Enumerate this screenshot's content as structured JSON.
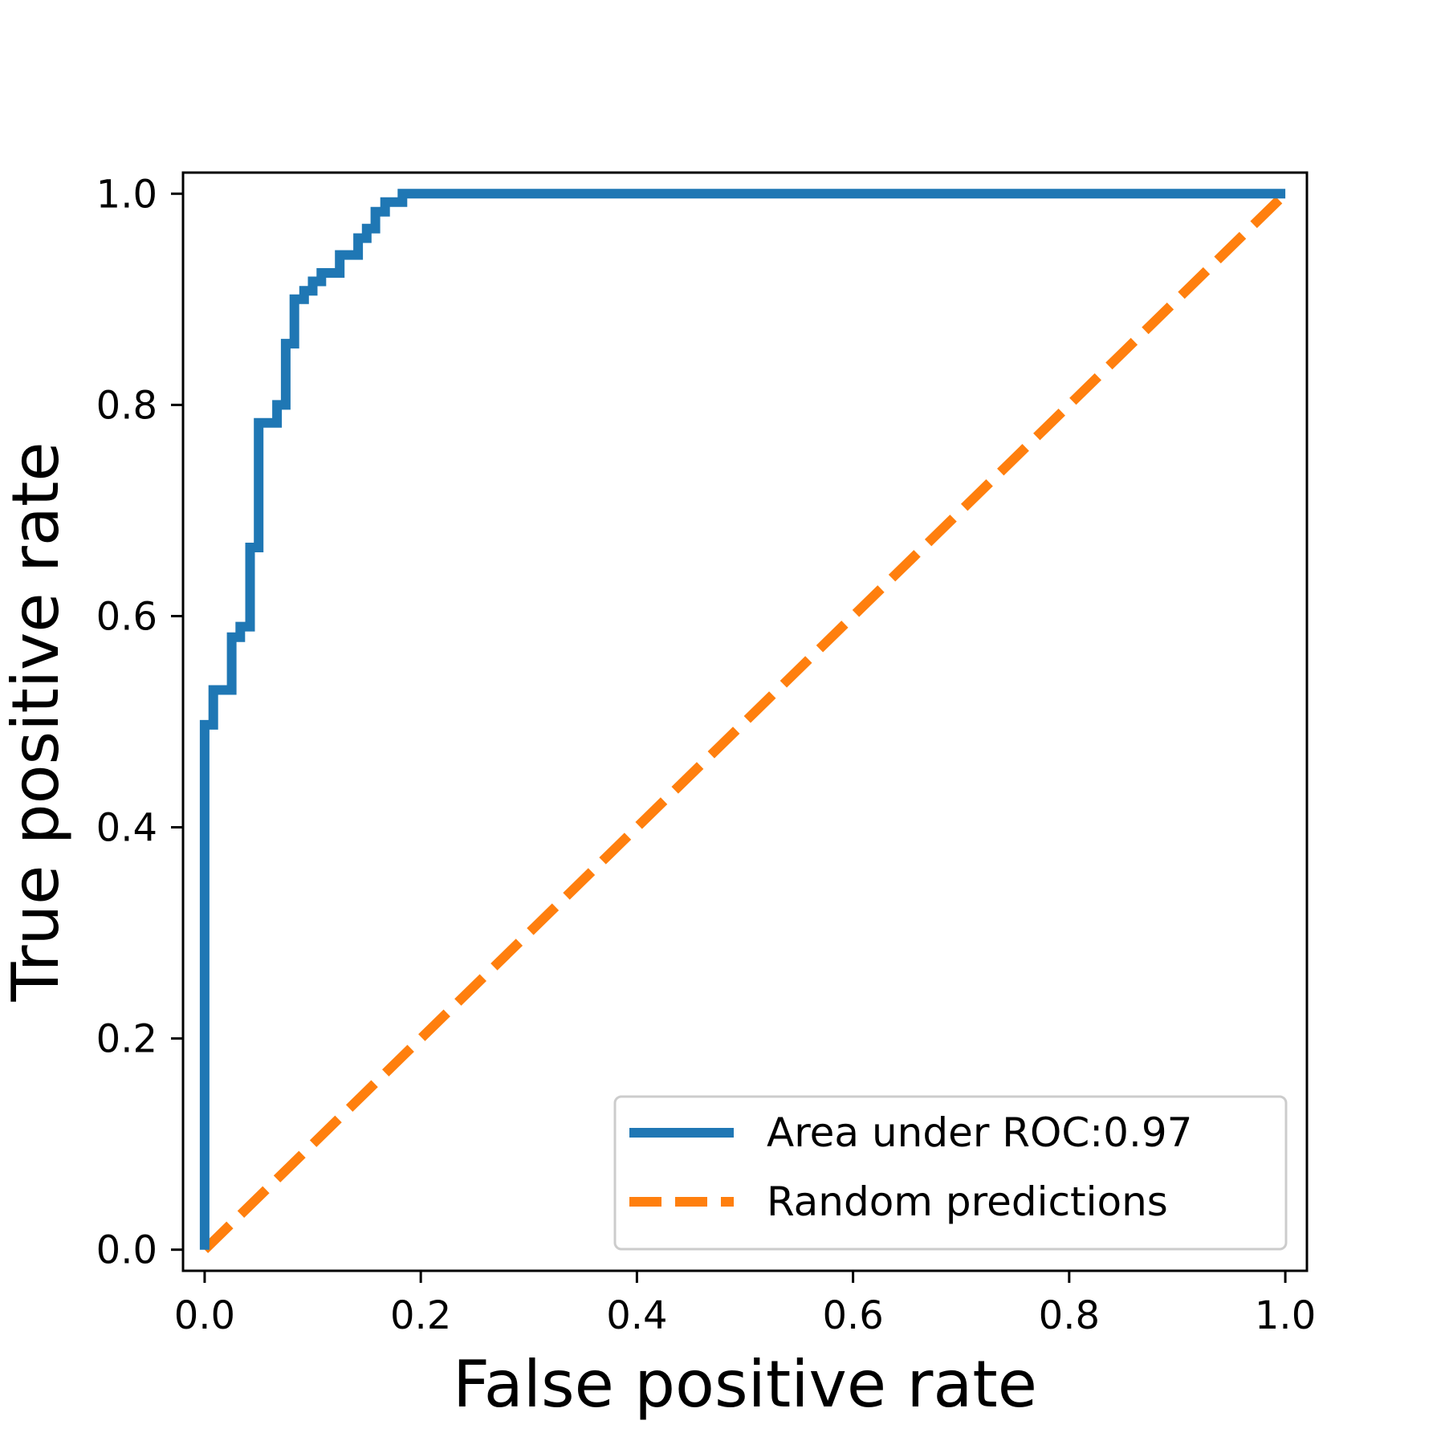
{
  "chart_data": {
    "type": "line",
    "xlabel": "False positive rate",
    "ylabel": "True positive rate",
    "xlim": [
      -0.02,
      1.02
    ],
    "ylim": [
      -0.02,
      1.02
    ],
    "xticks": [
      0.0,
      0.2,
      0.4,
      0.6,
      0.8,
      1.0
    ],
    "yticks": [
      0.0,
      0.2,
      0.4,
      0.6,
      0.8,
      1.0
    ],
    "xtick_labels": [
      "0.0",
      "0.2",
      "0.4",
      "0.6",
      "0.8",
      "1.0"
    ],
    "ytick_labels": [
      "0.0",
      "0.2",
      "0.4",
      "0.6",
      "0.8",
      "1.0"
    ],
    "grid": false,
    "legend_position": "lower-right",
    "series": [
      {
        "name": "Area under ROC:0.97",
        "color": "#1f77b4",
        "style": "solid",
        "x": [
          0.0,
          0.0,
          0.008,
          0.008,
          0.025,
          0.025,
          0.033,
          0.033,
          0.042,
          0.042,
          0.05,
          0.05,
          0.067,
          0.067,
          0.075,
          0.075,
          0.083,
          0.083,
          0.092,
          0.092,
          0.1,
          0.1,
          0.108,
          0.108,
          0.125,
          0.125,
          0.142,
          0.142,
          0.15,
          0.15,
          0.158,
          0.158,
          0.167,
          0.167,
          0.183,
          0.183,
          1.0
        ],
        "y": [
          0.0,
          0.497,
          0.497,
          0.53,
          0.53,
          0.58,
          0.58,
          0.59,
          0.59,
          0.665,
          0.665,
          0.783,
          0.783,
          0.8,
          0.8,
          0.858,
          0.858,
          0.9,
          0.9,
          0.908,
          0.908,
          0.917,
          0.917,
          0.925,
          0.925,
          0.942,
          0.942,
          0.958,
          0.958,
          0.967,
          0.967,
          0.983,
          0.983,
          0.992,
          0.992,
          1.0,
          1.0
        ]
      },
      {
        "name": "Random predictions",
        "color": "#ff7f0e",
        "style": "dashed",
        "x": [
          0.0,
          1.0
        ],
        "y": [
          0.0,
          1.0
        ]
      }
    ]
  }
}
